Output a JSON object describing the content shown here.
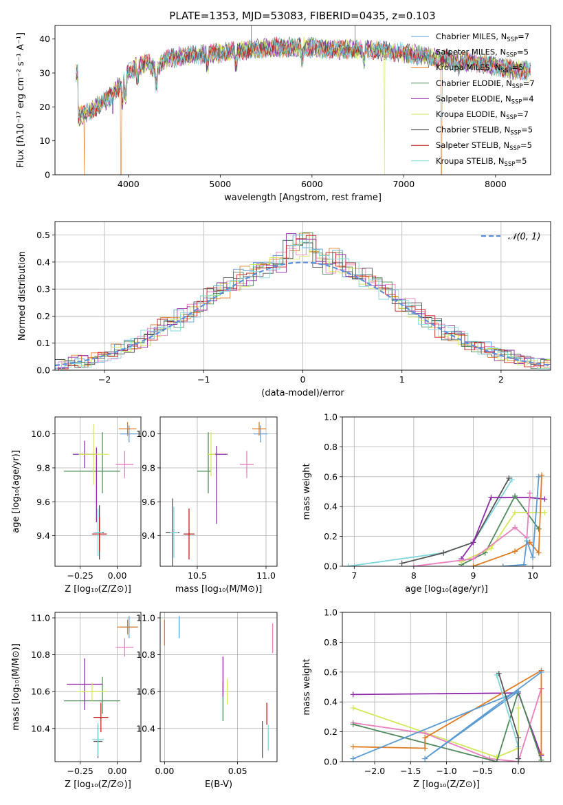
{
  "figure": {
    "title": "PLATE=1353, MJD=53083, FIBERID=0435, z=0.103"
  },
  "colors": {
    "chabrier_miles": "#5a9bd4",
    "salpeter_miles": "#e87fbf",
    "kroupa_miles": "#e07b22",
    "chabrier_elodie": "#4f8a5b",
    "salpeter_elodie": "#8e2aa8",
    "kroupa_elodie": "#d1e85a",
    "chabrier_stelib": "#555555",
    "salpeter_stelib": "#c0211c",
    "kroupa_stelib": "#7fd6dd",
    "normal_curve": "#5b8fd9",
    "grid": "#b0b0b0"
  },
  "chart_data": [
    {
      "id": "spectrum",
      "type": "line",
      "xlabel": "wavelength [Angstrom, rest frame]",
      "ylabel": "Flux [fλ10⁻¹⁷ erg cm⁻² s⁻¹ A⁻¹]",
      "xlim": [
        3200,
        8600
      ],
      "ylim": [
        0,
        44
      ],
      "xticks": [
        4000,
        5000,
        6000,
        7000,
        8000
      ],
      "yticks": [
        0,
        10,
        20,
        30,
        40
      ],
      "grid": false,
      "legend_position": "right",
      "continuum": [
        [
          3450,
          17
        ],
        [
          3600,
          19
        ],
        [
          3700,
          21
        ],
        [
          3800,
          23
        ],
        [
          3900,
          26
        ],
        [
          4000,
          30
        ],
        [
          4100,
          32
        ],
        [
          4200,
          33
        ],
        [
          4300,
          31
        ],
        [
          4400,
          34
        ],
        [
          4600,
          35
        ],
        [
          4800,
          35.5
        ],
        [
          5000,
          36
        ],
        [
          5200,
          36.5
        ],
        [
          5400,
          37
        ],
        [
          5600,
          37.5
        ],
        [
          5800,
          37.5
        ],
        [
          6000,
          37.5
        ],
        [
          6200,
          37
        ],
        [
          6400,
          37
        ],
        [
          6600,
          37
        ],
        [
          6800,
          36.5
        ],
        [
          7000,
          36
        ],
        [
          7200,
          35
        ],
        [
          7400,
          34
        ],
        [
          7600,
          33.5
        ],
        [
          7800,
          33
        ],
        [
          8000,
          32
        ],
        [
          8200,
          31
        ],
        [
          8400,
          30.5
        ]
      ],
      "series": [
        {
          "name": "Chabrier MILES, N_SSP=7",
          "color_key": "chabrier_miles"
        },
        {
          "name": "Salpeter MILES, N_SSP=5",
          "color_key": "salpeter_miles"
        },
        {
          "name": "Kroupa MILES, N_SSP=5",
          "color_key": "kroupa_miles",
          "dips": [
            [
              3520,
              0
            ],
            [
              3920,
              0
            ],
            [
              7410,
              0
            ]
          ]
        },
        {
          "name": "Chabrier ELODIE, N_SSP=7",
          "color_key": "chabrier_elodie"
        },
        {
          "name": "Salpeter ELODIE, N_SSP=4",
          "color_key": "salpeter_elodie",
          "dips": [
            [
              3830,
              18
            ]
          ]
        },
        {
          "name": "Kroupa ELODIE, N_SSP=7",
          "color_key": "kroupa_elodie",
          "dips": [
            [
              6790,
              0
            ]
          ]
        },
        {
          "name": "Chabrier STELIB, N_SSP=5",
          "color_key": "chabrier_stelib"
        },
        {
          "name": "Salpeter STELIB, N_SSP=5",
          "color_key": "salpeter_stelib"
        },
        {
          "name": "Kroupa STELIB, N_SSP=5",
          "color_key": "kroupa_stelib"
        }
      ]
    },
    {
      "id": "residuals",
      "type": "histogram",
      "xlabel": "(data-model)/error",
      "ylabel": "Normed distribution",
      "xlim": [
        -2.5,
        2.5
      ],
      "ylim": [
        0,
        0.55
      ],
      "xticks": [
        -2,
        -1,
        0,
        1,
        2
      ],
      "yticks": [
        0.0,
        0.1,
        0.2,
        0.3,
        0.4,
        0.5
      ],
      "grid": true,
      "legend": "𝒩(0, 1)",
      "legend_position": "top-right",
      "bin_width": 0.1,
      "bin_start": -2.5,
      "peak_bins": {
        "-0.1": 0.51,
        "0.1": 0.52,
        "0.0": 0.47
      }
    },
    {
      "id": "age_vs_Z",
      "type": "errorbar",
      "xlabel": "Z [log₁₀(Z/Z⊙)]",
      "ylabel": "age  [log₁₀(age/yr)]",
      "xlim": [
        -0.42,
        0.16
      ],
      "ylim": [
        9.22,
        10.1
      ],
      "xticks": [
        -0.25,
        0.0
      ],
      "xtick_labels": [
        "−0.25",
        "0.00"
      ],
      "yticks": [
        9.4,
        9.6,
        9.8,
        10.0
      ],
      "grid": true,
      "points": [
        {
          "c": "chabrier_miles",
          "x": 0.08,
          "y": 10.0,
          "ex": 0.06,
          "ey": 0.05
        },
        {
          "c": "salpeter_miles",
          "x": 0.05,
          "y": 9.82,
          "ex": 0.06,
          "ey": 0.08
        },
        {
          "c": "kroupa_miles",
          "x": 0.07,
          "y": 10.03,
          "ex": 0.06,
          "ey": 0.04
        },
        {
          "c": "chabrier_elodie",
          "x": -0.17,
          "y": 9.78,
          "ex": 0.19,
          "ey": 0.0
        },
        {
          "c": "chabrier_elodie",
          "x": -0.1,
          "y": 9.83,
          "ex": 0.0,
          "ey": 0.18
        },
        {
          "c": "salpeter_elodie",
          "x": -0.22,
          "y": 9.88,
          "ex": 0.08,
          "ey": 0.08
        },
        {
          "c": "salpeter_elodie",
          "x": -0.14,
          "y": 9.7,
          "ex": 0.0,
          "ey": 0.22
        },
        {
          "c": "kroupa_elodie",
          "x": -0.16,
          "y": 9.88,
          "ex": 0.1,
          "ey": 0.18
        },
        {
          "c": "chabrier_stelib",
          "x": -0.12,
          "y": 9.42,
          "ex": 0.03,
          "ey": 0.16
        },
        {
          "c": "salpeter_stelib",
          "x": -0.12,
          "y": 9.41,
          "ex": 0.05,
          "ey": 0.1
        },
        {
          "c": "kroupa_stelib",
          "x": -0.13,
          "y": 9.42,
          "ex": 0.03,
          "ey": 0.14
        }
      ]
    },
    {
      "id": "age_vs_mass",
      "type": "errorbar",
      "xlabel": "mass [log₁₀(M/M⊙)]",
      "ylabel": "",
      "xlim": [
        10.23,
        11.08
      ],
      "ylim": [
        9.22,
        10.1
      ],
      "xticks": [
        10.5,
        11.0
      ],
      "xtick_labels": [
        "10.5",
        "11.0"
      ],
      "yticks": [
        9.4,
        9.6,
        9.8,
        10.0
      ],
      "grid": true,
      "points": [
        {
          "c": "chabrier_miles",
          "x": 10.96,
          "y": 10.0,
          "ex": 0.05,
          "ey": 0.05
        },
        {
          "c": "salpeter_miles",
          "x": 10.86,
          "y": 9.82,
          "ex": 0.05,
          "ey": 0.08
        },
        {
          "c": "kroupa_miles",
          "x": 10.95,
          "y": 10.03,
          "ex": 0.05,
          "ey": 0.04
        },
        {
          "c": "chabrier_elodie",
          "x": 10.55,
          "y": 9.78,
          "ex": 0.05,
          "ey": 0.0
        },
        {
          "c": "chabrier_elodie",
          "x": 10.58,
          "y": 9.83,
          "ex": 0.0,
          "ey": 0.18
        },
        {
          "c": "salpeter_elodie",
          "x": 10.66,
          "y": 9.88,
          "ex": 0.06,
          "ey": 0.0
        },
        {
          "c": "salpeter_elodie",
          "x": 10.64,
          "y": 9.7,
          "ex": 0.0,
          "ey": 0.23
        },
        {
          "c": "kroupa_elodie",
          "x": 10.6,
          "y": 9.88,
          "ex": 0.03,
          "ey": 0.13
        },
        {
          "c": "chabrier_stelib",
          "x": 10.32,
          "y": 9.42,
          "ex": 0.05,
          "ey": 0.2
        },
        {
          "c": "salpeter_stelib",
          "x": 10.44,
          "y": 9.41,
          "ex": 0.04,
          "ey": 0.15
        },
        {
          "c": "kroupa_stelib",
          "x": 10.33,
          "y": 9.42,
          "ex": 0.03,
          "ey": 0.15
        }
      ]
    },
    {
      "id": "weight_vs_age",
      "type": "line",
      "xlabel": "age  [log₁₀(age/yr)]",
      "ylabel": "mass weight",
      "xlim": [
        6.8,
        10.3
      ],
      "ylim": [
        0.0,
        1.0
      ],
      "xticks": [
        7,
        8,
        9,
        10
      ],
      "yticks": [
        0.0,
        0.2,
        0.4,
        0.6,
        0.8,
        1.0
      ],
      "grid": true,
      "series": [
        {
          "c": "kroupa_stelib",
          "x": [
            6.9,
            8.5,
            9.0,
            9.65
          ],
          "y": [
            0.0,
            0.09,
            0.16,
            0.58
          ]
        },
        {
          "c": "chabrier_stelib",
          "x": [
            7.8,
            8.5,
            9.0,
            9.6
          ],
          "y": [
            0.02,
            0.09,
            0.16,
            0.59
          ]
        },
        {
          "c": "salpeter_elodie",
          "x": [
            8.8,
            9.0,
            9.3,
            9.95,
            10.2
          ],
          "y": [
            0.05,
            0.16,
            0.46,
            0.46,
            0.45
          ]
        },
        {
          "c": "chabrier_elodie",
          "x": [
            8.8,
            9.2,
            9.7,
            10.1
          ],
          "y": [
            0.01,
            0.09,
            0.47,
            0.25
          ]
        },
        {
          "c": "kroupa_elodie",
          "x": [
            8.8,
            9.3,
            9.7,
            10.2
          ],
          "y": [
            0.03,
            0.12,
            0.36,
            0.36
          ]
        },
        {
          "c": "salpeter_miles",
          "x": [
            8.0,
            9.0,
            9.7,
            9.9,
            9.95
          ],
          "y": [
            0.0,
            0.05,
            0.26,
            0.19,
            0.49
          ]
        },
        {
          "c": "kroupa_miles",
          "x": [
            9.0,
            9.7,
            9.95,
            10.1,
            10.15
          ],
          "y": [
            0.0,
            0.1,
            0.16,
            0.09,
            0.61
          ]
        },
        {
          "c": "chabrier_miles",
          "x": [
            9.5,
            9.85,
            9.9,
            10.0,
            10.1
          ],
          "y": [
            0.0,
            0.01,
            0.17,
            0.06,
            0.6
          ]
        }
      ]
    },
    {
      "id": "mass_vs_Z",
      "type": "errorbar",
      "xlabel": "Z [log₁₀(Z/Z⊙)]",
      "ylabel": "mass [log₁₀(M/M⊙)]",
      "xlim": [
        -0.42,
        0.16
      ],
      "ylim": [
        10.22,
        11.03
      ],
      "xticks": [
        -0.25,
        0.0
      ],
      "xtick_labels": [
        "−0.25",
        "0.00"
      ],
      "yticks": [
        10.4,
        10.6,
        10.8,
        11.0
      ],
      "grid": true,
      "points": [
        {
          "c": "chabrier_miles",
          "x": 0.08,
          "y": 10.95,
          "ex": 0.06,
          "ey": 0.06
        },
        {
          "c": "salpeter_miles",
          "x": 0.05,
          "y": 10.84,
          "ex": 0.06,
          "ey": 0.05
        },
        {
          "c": "kroupa_miles",
          "x": 0.07,
          "y": 10.95,
          "ex": 0.07,
          "ey": 0.04
        },
        {
          "c": "chabrier_elodie",
          "x": -0.17,
          "y": 10.55,
          "ex": 0.19,
          "ey": 0.0
        },
        {
          "c": "chabrier_elodie",
          "x": -0.1,
          "y": 10.58,
          "ex": 0.0,
          "ey": 0.1
        },
        {
          "c": "salpeter_elodie",
          "x": -0.22,
          "y": 10.64,
          "ex": 0.12,
          "ey": 0.14
        },
        {
          "c": "kroupa_elodie",
          "x": -0.17,
          "y": 10.6,
          "ex": 0.1,
          "ey": 0.05
        },
        {
          "c": "chabrier_stelib",
          "x": -0.13,
          "y": 10.33,
          "ex": 0.03,
          "ey": 0.09
        },
        {
          "c": "salpeter_stelib",
          "x": -0.11,
          "y": 10.46,
          "ex": 0.05,
          "ey": 0.08
        },
        {
          "c": "kroupa_stelib",
          "x": -0.13,
          "y": 10.34,
          "ex": 0.04,
          "ey": 0.09
        }
      ]
    },
    {
      "id": "mass_vs_ebv",
      "type": "errorbar",
      "xlabel": "E(B-V)",
      "ylabel": "",
      "xlim": [
        -0.003,
        0.077
      ],
      "ylim": [
        10.22,
        11.03
      ],
      "xticks": [
        0.0,
        0.05
      ],
      "xtick_labels": [
        "0.00",
        "0.05"
      ],
      "yticks": [
        10.4,
        10.6,
        10.8,
        11.0
      ],
      "grid": true,
      "points": [
        {
          "c": "chabrier_miles",
          "x": 0.01,
          "y": 10.95,
          "ex": 0.0,
          "ey": 0.06
        },
        {
          "c": "salpeter_miles",
          "x": 0.074,
          "y": 10.89,
          "ex": 0.0,
          "ey": 0.08
        },
        {
          "c": "kroupa_miles",
          "x": 0.0,
          "y": 10.92,
          "ex": 0.0,
          "ey": 0.07
        },
        {
          "c": "chabrier_elodie",
          "x": 0.04,
          "y": 10.55,
          "ex": 0.0,
          "ey": 0.11
        },
        {
          "c": "salpeter_elodie",
          "x": 0.04,
          "y": 10.68,
          "ex": 0.0,
          "ey": 0.11
        },
        {
          "c": "kroupa_elodie",
          "x": 0.043,
          "y": 10.6,
          "ex": 0.0,
          "ey": 0.07
        },
        {
          "c": "chabrier_stelib",
          "x": 0.067,
          "y": 10.34,
          "ex": 0.0,
          "ey": 0.1
        },
        {
          "c": "salpeter_stelib",
          "x": 0.07,
          "y": 10.48,
          "ex": 0.0,
          "ey": 0.06
        },
        {
          "c": "kroupa_stelib",
          "x": 0.071,
          "y": 10.35,
          "ex": 0.0,
          "ey": 0.07
        }
      ]
    },
    {
      "id": "weight_vs_Z",
      "type": "line",
      "xlabel": "Z [log₁₀(Z/Z⊙)]",
      "ylabel": "mass weight",
      "xlim": [
        -2.45,
        0.45
      ],
      "ylim": [
        0.0,
        1.0
      ],
      "xticks": [
        -2.0,
        -1.5,
        -1.0,
        -0.5,
        0.0
      ],
      "xtick_labels": [
        "−2.0",
        "−1.5",
        "−1.0",
        "−0.5",
        "0.0"
      ],
      "yticks": [
        0.0,
        0.2,
        0.4,
        0.6,
        0.8,
        1.0
      ],
      "grid": true,
      "series": [
        {
          "c": "salpeter_elodie",
          "x": [
            -2.3,
            0.0,
            0.32
          ],
          "y": [
            0.45,
            0.46,
            0.04
          ]
        },
        {
          "c": "kroupa_elodie",
          "x": [
            -2.3,
            -0.3,
            0.0,
            0.0
          ],
          "y": [
            0.36,
            0.03,
            0.09,
            0.36
          ]
        },
        {
          "c": "salpeter_miles",
          "x": [
            -2.3,
            -1.3,
            -0.4,
            0.0,
            0.32
          ],
          "y": [
            0.26,
            0.19,
            0.02,
            0.0,
            0.49
          ]
        },
        {
          "c": "chabrier_elodie",
          "x": [
            -2.3,
            -0.3,
            0.0,
            0.32
          ],
          "y": [
            0.25,
            0.0,
            0.47,
            0.01
          ]
        },
        {
          "c": "kroupa_miles",
          "x": [
            -2.3,
            -1.3,
            -1.3,
            0.32,
            0.32
          ],
          "y": [
            0.1,
            0.09,
            0.16,
            0.61,
            0.05
          ]
        },
        {
          "c": "chabrier_miles",
          "x": [
            -2.3,
            0.0,
            -1.3,
            0.32
          ],
          "y": [
            0.02,
            0.47,
            0.02,
            0.6
          ]
        },
        {
          "c": "kroupa_stelib",
          "x": [
            -0.3,
            0.0,
            0.0
          ],
          "y": [
            0.58,
            0.1,
            0.0
          ]
        },
        {
          "c": "chabrier_stelib",
          "x": [
            -0.27,
            0.0,
            0.0
          ],
          "y": [
            0.59,
            0.16,
            0.02
          ]
        }
      ]
    }
  ]
}
